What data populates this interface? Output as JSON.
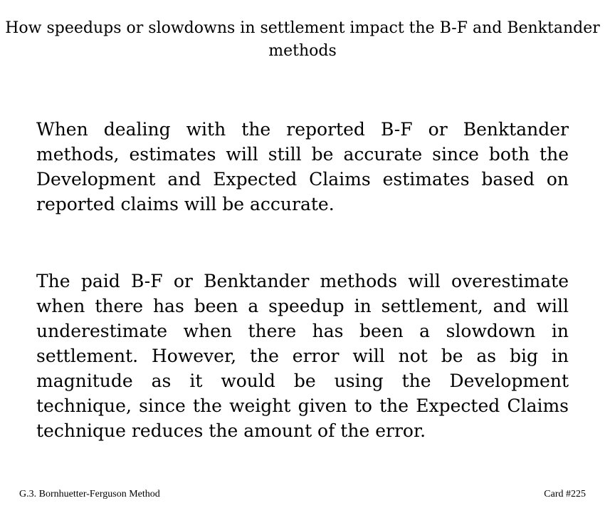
{
  "card": {
    "title": "How speedups or slowdowns in settlement impact the B-F and Benktander methods",
    "paragraphs": [
      "When dealing with the reported B-F or Benktander methods, estimates will still be accurate since both the Development and Expected Claims estimates based on reported claims will be accurate.",
      "The paid B-F or Benktander methods will overestimate when there has been a speedup in settlement, and will underestimate when there has been a slowdown in settlement. However, the error will not be as big in magnitude as it would be using the Development technique, since the weight given to the Expected Claims technique reduces the amount of the error."
    ]
  },
  "footer": {
    "section": "G.3. Bornhuetter-Ferguson Method",
    "card_number": "Card #225"
  }
}
